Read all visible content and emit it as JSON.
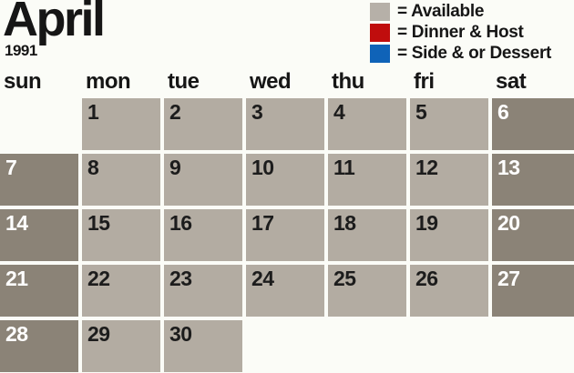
{
  "title": {
    "month": "April",
    "year": "1991"
  },
  "legend": {
    "items": [
      {
        "name": "available",
        "color": "#b6b0a8",
        "label": "= Available"
      },
      {
        "name": "dinner-host",
        "color": "#c00d0d",
        "label": "= Dinner & Host"
      },
      {
        "name": "side-dessert",
        "color": "#0f63b8",
        "label": "= Side & or Dessert"
      }
    ]
  },
  "calendar": {
    "weekday_headers": [
      "sun",
      "mon",
      "tue",
      "wed",
      "thu",
      "fri",
      "sat"
    ],
    "weeks": [
      [
        {
          "day": "",
          "type": "empty"
        },
        {
          "day": "1",
          "type": "weekday",
          "status": "available"
        },
        {
          "day": "2",
          "type": "weekday",
          "status": "available"
        },
        {
          "day": "3",
          "type": "weekday",
          "status": "available"
        },
        {
          "day": "4",
          "type": "weekday",
          "status": "available"
        },
        {
          "day": "5",
          "type": "weekday",
          "status": "available"
        },
        {
          "day": "6",
          "type": "weekend",
          "status": "available"
        }
      ],
      [
        {
          "day": "7",
          "type": "weekend",
          "status": "available"
        },
        {
          "day": "8",
          "type": "weekday",
          "status": "available"
        },
        {
          "day": "9",
          "type": "weekday",
          "status": "available"
        },
        {
          "day": "10",
          "type": "weekday",
          "status": "available"
        },
        {
          "day": "11",
          "type": "weekday",
          "status": "available"
        },
        {
          "day": "12",
          "type": "weekday",
          "status": "available"
        },
        {
          "day": "13",
          "type": "weekend",
          "status": "available"
        }
      ],
      [
        {
          "day": "14",
          "type": "weekend",
          "status": "available"
        },
        {
          "day": "15",
          "type": "weekday",
          "status": "available"
        },
        {
          "day": "16",
          "type": "weekday",
          "status": "available"
        },
        {
          "day": "17",
          "type": "weekday",
          "status": "available"
        },
        {
          "day": "18",
          "type": "weekday",
          "status": "available"
        },
        {
          "day": "19",
          "type": "weekday",
          "status": "available"
        },
        {
          "day": "20",
          "type": "weekend",
          "status": "available"
        }
      ],
      [
        {
          "day": "21",
          "type": "weekend",
          "status": "available"
        },
        {
          "day": "22",
          "type": "weekday",
          "status": "available"
        },
        {
          "day": "23",
          "type": "weekday",
          "status": "available"
        },
        {
          "day": "24",
          "type": "weekday",
          "status": "available"
        },
        {
          "day": "25",
          "type": "weekday",
          "status": "available"
        },
        {
          "day": "26",
          "type": "weekday",
          "status": "available"
        },
        {
          "day": "27",
          "type": "weekend",
          "status": "available"
        }
      ],
      [
        {
          "day": "28",
          "type": "weekend",
          "status": "available"
        },
        {
          "day": "29",
          "type": "weekday",
          "status": "available"
        },
        {
          "day": "30",
          "type": "weekday",
          "status": "available"
        },
        {
          "day": "",
          "type": "empty"
        },
        {
          "day": "",
          "type": "empty"
        },
        {
          "day": "",
          "type": "empty"
        },
        {
          "day": "",
          "type": "empty"
        }
      ]
    ]
  },
  "colors": {
    "background": "#fbfcf7",
    "heading_text": "#161616",
    "cell_available_light": "#b3aca2",
    "cell_available_dark": "#8b8377",
    "day_number_dark": "#1c1c1c",
    "day_number_light": "#ffffff",
    "legend_dinner_host": "#c00d0d",
    "legend_side_dessert": "#0f63b8"
  }
}
